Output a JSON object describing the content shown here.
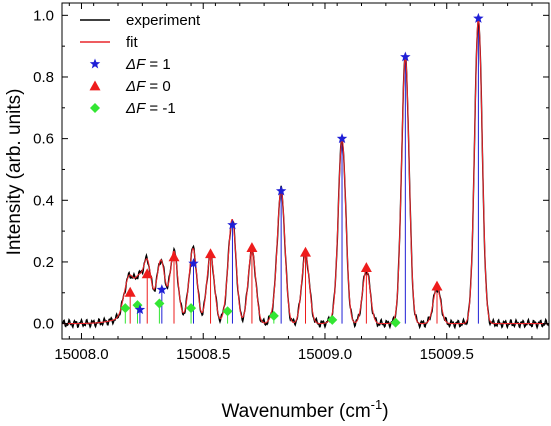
{
  "chart_data": {
    "type": "line",
    "xlabel": "Wavenumber (cm",
    "xlabel_sup": "-1",
    "xlabel_end": ")",
    "ylabel": "Intensity (arb. units)",
    "xlim": [
      15007.92,
      15009.92
    ],
    "ylim": [
      -0.05,
      1.04
    ],
    "x_ticks": [
      15008.0,
      15008.5,
      15009.0,
      15009.5
    ],
    "x_tick_labels": [
      "15008.0",
      "15008.5",
      "15009.0",
      "15009.5"
    ],
    "y_ticks": [
      0.0,
      0.2,
      0.4,
      0.6,
      0.8,
      1.0
    ],
    "y_tick_labels": [
      "0.0",
      "0.2",
      "0.4",
      "0.6",
      "0.8",
      "1.0"
    ],
    "grid": false,
    "legend_position": "top-left",
    "colors": {
      "experiment": "#000000",
      "fit": "#e8262b",
      "dF_plus1": "#1f1fd6",
      "dF_0": "#ee1c1c",
      "dF_minus1": "#33e633"
    },
    "legend": [
      {
        "label": "experiment",
        "kind": "line",
        "color": "#000000"
      },
      {
        "label": "fit",
        "kind": "line",
        "color": "#e8262b"
      },
      {
        "label": "ΔF = 1",
        "symbol": "ΔF",
        "rest": " = 1",
        "kind": "star",
        "color": "#1f1fd6"
      },
      {
        "label": "ΔF = 0",
        "symbol": "ΔF",
        "rest": " = 0",
        "kind": "triangle",
        "color": "#ee1c1c"
      },
      {
        "label": "ΔF = -1",
        "symbol": "ΔF",
        "rest": " = -1",
        "kind": "diamond",
        "color": "#33e633"
      }
    ],
    "series": [
      {
        "name": "ΔF = 1",
        "marker": "star",
        "x": [
          15008.24,
          15008.33,
          15008.46,
          15008.62,
          15008.82,
          15009.07,
          15009.33,
          15009.63
        ],
        "y": [
          0.045,
          0.11,
          0.195,
          0.32,
          0.43,
          0.6,
          0.865,
          0.99
        ]
      },
      {
        "name": "ΔF = 0",
        "marker": "triangle",
        "x": [
          15008.2,
          15008.27,
          15008.38,
          15008.53,
          15008.7,
          15008.92,
          15009.17,
          15009.46
        ],
        "y": [
          0.095,
          0.155,
          0.21,
          0.22,
          0.24,
          0.225,
          0.175,
          0.115
        ]
      },
      {
        "name": "ΔF = -1",
        "marker": "diamond",
        "x": [
          15008.18,
          15008.23,
          15008.32,
          15008.45,
          15008.6,
          15008.79,
          15009.03,
          15009.29
        ],
        "y": [
          0.05,
          0.06,
          0.065,
          0.05,
          0.04,
          0.025,
          0.012,
          0.003
        ]
      }
    ]
  }
}
